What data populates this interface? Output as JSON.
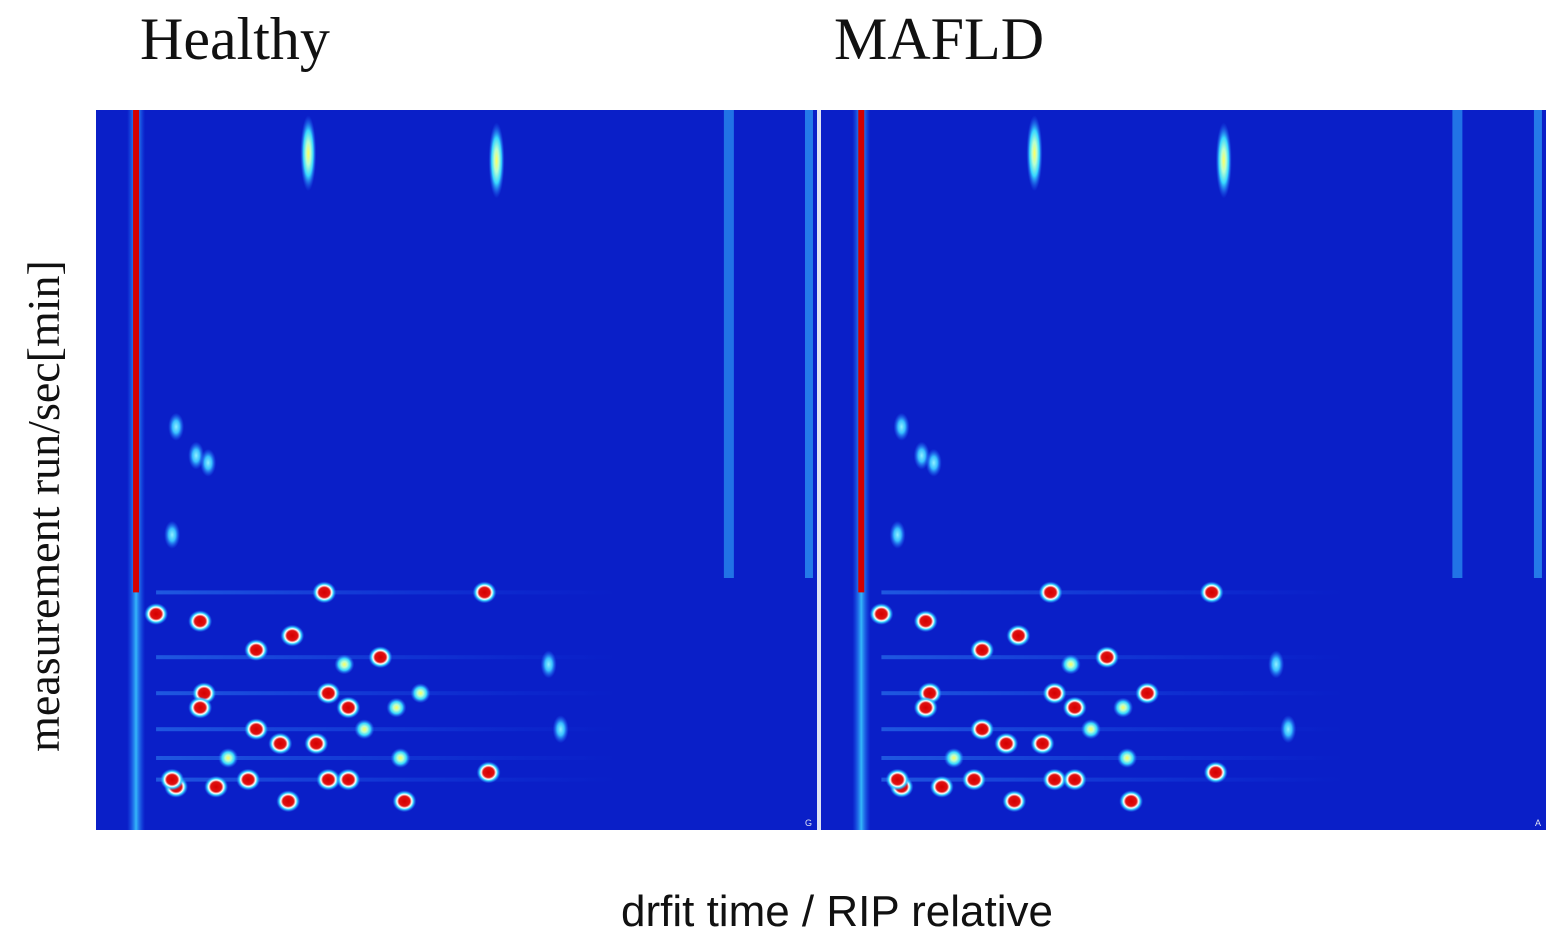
{
  "chart_data": {
    "type": "heatmap",
    "panels": [
      {
        "title": "Healthy",
        "corner_mark": "G",
        "peaks": [
          {
            "x": 1.0,
            "y": 0.05,
            "i": 1.0,
            "type": "rip"
          },
          {
            "x": 1.43,
            "y": 0.94,
            "i": 0.95
          },
          {
            "x": 1.9,
            "y": 0.93,
            "i": 0.5
          },
          {
            "x": 1.1,
            "y": 0.56,
            "i": 0.55
          },
          {
            "x": 1.15,
            "y": 0.52,
            "i": 0.45
          },
          {
            "x": 1.18,
            "y": 0.51,
            "i": 0.55
          },
          {
            "x": 1.09,
            "y": 0.41,
            "i": 0.5
          },
          {
            "x": 1.47,
            "y": 0.33,
            "i": 1.0
          },
          {
            "x": 1.87,
            "y": 0.33,
            "i": 1.0
          },
          {
            "x": 1.05,
            "y": 0.3,
            "i": 0.95
          },
          {
            "x": 1.16,
            "y": 0.29,
            "i": 0.95
          },
          {
            "x": 1.39,
            "y": 0.27,
            "i": 0.9
          },
          {
            "x": 1.3,
            "y": 0.25,
            "i": 1.0
          },
          {
            "x": 1.61,
            "y": 0.24,
            "i": 1.0
          },
          {
            "x": 1.52,
            "y": 0.23,
            "i": 0.85
          },
          {
            "x": 2.03,
            "y": 0.23,
            "i": 0.45
          },
          {
            "x": 1.17,
            "y": 0.19,
            "i": 0.95
          },
          {
            "x": 1.48,
            "y": 0.19,
            "i": 0.9
          },
          {
            "x": 1.71,
            "y": 0.19,
            "i": 0.85
          },
          {
            "x": 1.16,
            "y": 0.17,
            "i": 0.9
          },
          {
            "x": 1.53,
            "y": 0.17,
            "i": 1.0
          },
          {
            "x": 1.65,
            "y": 0.17,
            "i": 0.8
          },
          {
            "x": 1.3,
            "y": 0.14,
            "i": 0.95
          },
          {
            "x": 1.57,
            "y": 0.14,
            "i": 0.85
          },
          {
            "x": 2.06,
            "y": 0.14,
            "i": 0.5
          },
          {
            "x": 1.36,
            "y": 0.12,
            "i": 1.0
          },
          {
            "x": 1.45,
            "y": 0.12,
            "i": 0.9
          },
          {
            "x": 1.23,
            "y": 0.1,
            "i": 0.85
          },
          {
            "x": 1.66,
            "y": 0.1,
            "i": 0.85
          },
          {
            "x": 1.1,
            "y": 0.06,
            "i": 1.0
          },
          {
            "x": 1.2,
            "y": 0.06,
            "i": 1.0
          },
          {
            "x": 1.28,
            "y": 0.07,
            "i": 1.0
          },
          {
            "x": 1.48,
            "y": 0.07,
            "i": 1.0
          },
          {
            "x": 1.53,
            "y": 0.07,
            "i": 1.0
          },
          {
            "x": 1.88,
            "y": 0.08,
            "i": 1.0
          },
          {
            "x": 1.38,
            "y": 0.04,
            "i": 1.0
          },
          {
            "x": 1.67,
            "y": 0.04,
            "i": 1.0
          },
          {
            "x": 1.09,
            "y": 0.07,
            "i": 0.95
          }
        ]
      },
      {
        "title": "MAFLD",
        "corner_mark": "A",
        "peaks": [
          {
            "x": 1.0,
            "y": 0.05,
            "i": 1.0,
            "type": "rip"
          },
          {
            "x": 1.43,
            "y": 0.94,
            "i": 0.95
          },
          {
            "x": 1.9,
            "y": 0.93,
            "i": 0.5
          },
          {
            "x": 1.1,
            "y": 0.56,
            "i": 0.5
          },
          {
            "x": 1.15,
            "y": 0.52,
            "i": 0.45
          },
          {
            "x": 1.18,
            "y": 0.51,
            "i": 0.5
          },
          {
            "x": 1.09,
            "y": 0.41,
            "i": 0.5
          },
          {
            "x": 1.47,
            "y": 0.33,
            "i": 1.0
          },
          {
            "x": 1.87,
            "y": 0.33,
            "i": 1.0
          },
          {
            "x": 1.05,
            "y": 0.3,
            "i": 0.95
          },
          {
            "x": 1.16,
            "y": 0.29,
            "i": 0.95
          },
          {
            "x": 1.39,
            "y": 0.27,
            "i": 0.9
          },
          {
            "x": 1.3,
            "y": 0.25,
            "i": 1.0
          },
          {
            "x": 1.61,
            "y": 0.24,
            "i": 0.95
          },
          {
            "x": 1.52,
            "y": 0.23,
            "i": 0.85
          },
          {
            "x": 2.03,
            "y": 0.23,
            "i": 0.45
          },
          {
            "x": 1.17,
            "y": 0.19,
            "i": 0.95
          },
          {
            "x": 1.48,
            "y": 0.19,
            "i": 0.95
          },
          {
            "x": 1.71,
            "y": 0.19,
            "i": 0.9
          },
          {
            "x": 1.16,
            "y": 0.17,
            "i": 0.9
          },
          {
            "x": 1.53,
            "y": 0.17,
            "i": 1.0
          },
          {
            "x": 1.65,
            "y": 0.17,
            "i": 0.8
          },
          {
            "x": 1.3,
            "y": 0.14,
            "i": 0.9
          },
          {
            "x": 1.57,
            "y": 0.14,
            "i": 0.85
          },
          {
            "x": 2.06,
            "y": 0.14,
            "i": 0.5
          },
          {
            "x": 1.36,
            "y": 0.12,
            "i": 1.0
          },
          {
            "x": 1.45,
            "y": 0.12,
            "i": 0.9
          },
          {
            "x": 1.23,
            "y": 0.1,
            "i": 0.85
          },
          {
            "x": 1.66,
            "y": 0.1,
            "i": 0.8
          },
          {
            "x": 1.1,
            "y": 0.06,
            "i": 1.0
          },
          {
            "x": 1.2,
            "y": 0.06,
            "i": 1.0
          },
          {
            "x": 1.28,
            "y": 0.07,
            "i": 1.0
          },
          {
            "x": 1.48,
            "y": 0.07,
            "i": 1.0
          },
          {
            "x": 1.53,
            "y": 0.07,
            "i": 1.0
          },
          {
            "x": 1.88,
            "y": 0.08,
            "i": 1.0
          },
          {
            "x": 1.38,
            "y": 0.04,
            "i": 1.0
          },
          {
            "x": 1.67,
            "y": 0.04,
            "i": 1.0
          },
          {
            "x": 1.09,
            "y": 0.07,
            "i": 0.95
          }
        ]
      }
    ],
    "xlabel": "drfit time / RIP relative",
    "ylabel": "measurement run/sec[min]",
    "xlim": [
      0.9,
      2.7
    ],
    "ylim": [
      0,
      1
    ],
    "colors": {
      "background": "#0a1fc8",
      "low": "#1f6bff",
      "mid": "#38d8ff",
      "high": "#ffff60",
      "peak": "#d40000",
      "separator": "#dfe3f4"
    }
  }
}
